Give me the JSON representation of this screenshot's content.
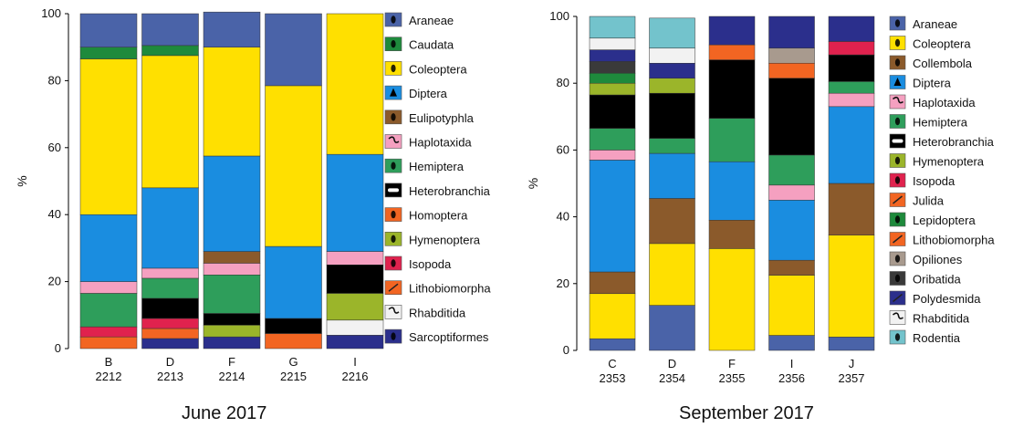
{
  "chart_data": [
    {
      "type": "bar",
      "stacked": true,
      "title": "June 2017",
      "ylabel": "%",
      "xlabel": "",
      "ylim": [
        0,
        100
      ],
      "yticks": [
        0,
        20,
        40,
        60,
        80,
        100
      ],
      "grid": false,
      "legend_position": "right",
      "categories": [
        {
          "letter": "B",
          "id": "2212"
        },
        {
          "letter": "D",
          "id": "2213"
        },
        {
          "letter": "F",
          "id": "2214"
        },
        {
          "letter": "G",
          "id": "2215"
        },
        {
          "letter": "I",
          "id": "2216"
        }
      ],
      "series": [
        {
          "name": "Sarcoptiformes",
          "color": "#2b2f8c",
          "icon": "mite-icon",
          "values": [
            0,
            3,
            3.5,
            0,
            4
          ]
        },
        {
          "name": "Rhabditida",
          "color": "#f2f2f2",
          "icon": "nematode-icon",
          "values": [
            0,
            0,
            0,
            0,
            4.5
          ]
        },
        {
          "name": "Lithobiomorpha",
          "color": "#f26522",
          "icon": "centipede-icon",
          "values": [
            3.5,
            3,
            0,
            4.5,
            0
          ]
        },
        {
          "name": "Isopoda",
          "color": "#e0224e",
          "icon": "woodlouse-icon",
          "values": [
            3,
            3,
            0,
            0,
            0
          ]
        },
        {
          "name": "Hymenoptera",
          "color": "#9bb52a",
          "icon": "ant-icon",
          "values": [
            0,
            0,
            3.5,
            0,
            8
          ]
        },
        {
          "name": "Homoptera",
          "color": "#f26522",
          "icon": "planthopper-icon",
          "values": [
            0,
            0,
            0,
            0,
            0
          ]
        },
        {
          "name": "Heterobranchia",
          "color": "#000000",
          "icon": "slug-icon",
          "values": [
            0,
            6,
            3.5,
            4.5,
            8.5
          ]
        },
        {
          "name": "Hemiptera",
          "color": "#2e9e5b",
          "icon": "bug-icon",
          "values": [
            10,
            6,
            11.5,
            0,
            0
          ]
        },
        {
          "name": "Haplotaxida",
          "color": "#f5a0c0",
          "icon": "earthworm-icon",
          "values": [
            3.5,
            3,
            3.5,
            0,
            4
          ]
        },
        {
          "name": "Eulipotyphla",
          "color": "#8b5a2b",
          "icon": "shrew-icon",
          "values": [
            0,
            0,
            3.5,
            0,
            0
          ]
        },
        {
          "name": "Diptera",
          "color": "#1a8de0",
          "icon": "fly-icon",
          "values": [
            20,
            24,
            28.5,
            21.5,
            29
          ]
        },
        {
          "name": "Coleoptera",
          "color": "#ffe000",
          "icon": "beetle-icon",
          "values": [
            46.5,
            39.5,
            32.5,
            48,
            42
          ]
        },
        {
          "name": "Caudata",
          "color": "#1e8a3c",
          "icon": "salamander-icon",
          "values": [
            3.5,
            3,
            0,
            0,
            0
          ]
        },
        {
          "name": "Araneae",
          "color": "#4a63a8",
          "icon": "spider-icon",
          "values": [
            10,
            9.5,
            10.5,
            21.5,
            0
          ]
        }
      ],
      "legend": [
        {
          "name": "Araneae",
          "color": "#4a63a8",
          "icon": "spider-icon"
        },
        {
          "name": "Caudata",
          "color": "#1e8a3c",
          "icon": "salamander-icon"
        },
        {
          "name": "Coleoptera",
          "color": "#ffe000",
          "icon": "beetle-icon"
        },
        {
          "name": "Diptera",
          "color": "#1a8de0",
          "icon": "fly-icon"
        },
        {
          "name": "Eulipotyphla",
          "color": "#8b5a2b",
          "icon": "shrew-icon"
        },
        {
          "name": "Haplotaxida",
          "color": "#f5a0c0",
          "icon": "earthworm-icon"
        },
        {
          "name": "Hemiptera",
          "color": "#2e9e5b",
          "icon": "bug-icon"
        },
        {
          "name": "Heterobranchia",
          "color": "#000000",
          "icon": "slug-icon"
        },
        {
          "name": "Homoptera",
          "color": "#f26522",
          "icon": "planthopper-icon"
        },
        {
          "name": "Hymenoptera",
          "color": "#9bb52a",
          "icon": "ant-icon"
        },
        {
          "name": "Isopoda",
          "color": "#e0224e",
          "icon": "woodlouse-icon"
        },
        {
          "name": "Lithobiomorpha",
          "color": "#f26522",
          "icon": "centipede-icon"
        },
        {
          "name": "Rhabditida",
          "color": "#f2f2f2",
          "icon": "nematode-icon"
        },
        {
          "name": "Sarcoptiformes",
          "color": "#2b2f8c",
          "icon": "mite-icon"
        }
      ]
    },
    {
      "type": "bar",
      "stacked": true,
      "title": "September 2017",
      "ylabel": "%",
      "xlabel": "",
      "ylim": [
        0,
        100
      ],
      "yticks": [
        0,
        20,
        40,
        60,
        80,
        100
      ],
      "grid": false,
      "legend_position": "right",
      "categories": [
        {
          "letter": "C",
          "id": "2353"
        },
        {
          "letter": "D",
          "id": "2354"
        },
        {
          "letter": "F",
          "id": "2355"
        },
        {
          "letter": "I",
          "id": "2356"
        },
        {
          "letter": "J",
          "id": "2357"
        }
      ],
      "series": [
        {
          "name": "Araneae",
          "color": "#4a63a8",
          "icon": "spider-icon",
          "values": [
            3.5,
            13.5,
            0,
            4.5,
            4
          ]
        },
        {
          "name": "Coleoptera",
          "color": "#ffe000",
          "icon": "beetle-icon",
          "values": [
            13.5,
            18.5,
            30.5,
            18,
            30.5
          ]
        },
        {
          "name": "Collembola",
          "color": "#8b5a2b",
          "icon": "springtail-icon",
          "values": [
            6.5,
            13.5,
            8.5,
            4.5,
            15.5
          ]
        },
        {
          "name": "Diptera",
          "color": "#1a8de0",
          "icon": "fly-icon",
          "values": [
            33.5,
            13.5,
            17.5,
            18,
            23
          ]
        },
        {
          "name": "Haplotaxida",
          "color": "#f5a0c0",
          "icon": "earthworm-icon",
          "values": [
            3,
            0,
            0,
            4.5,
            4
          ]
        },
        {
          "name": "Hemiptera",
          "color": "#2e9e5b",
          "icon": "bug-icon",
          "values": [
            6.5,
            4.5,
            13,
            9,
            3.5
          ]
        },
        {
          "name": "Heterobranchia",
          "color": "#000000",
          "icon": "slug-icon",
          "values": [
            10,
            13.5,
            17.5,
            23,
            8
          ]
        },
        {
          "name": "Hymenoptera",
          "color": "#9bb52a",
          "icon": "ant-icon",
          "values": [
            3.5,
            4.5,
            0,
            0,
            0
          ]
        },
        {
          "name": "Isopoda",
          "color": "#e0224e",
          "icon": "woodlouse-icon",
          "values": [
            0,
            0,
            0,
            0,
            4
          ]
        },
        {
          "name": "Julida",
          "color": "#f26522",
          "icon": "millipede-icon",
          "values": [
            0,
            0,
            0,
            0,
            0
          ]
        },
        {
          "name": "Lepidoptera",
          "color": "#1e8a3c",
          "icon": "caterpillar-icon",
          "values": [
            3,
            0,
            0,
            0,
            0
          ]
        },
        {
          "name": "Lithobiomorpha",
          "color": "#f26522",
          "icon": "centipede-icon",
          "values": [
            0,
            0,
            4.5,
            4.5,
            0
          ]
        },
        {
          "name": "Opiliones",
          "color": "#a89a8e",
          "icon": "harvestman-icon",
          "values": [
            0,
            0,
            0,
            4.5,
            0
          ]
        },
        {
          "name": "Oribatida",
          "color": "#3a3a3a",
          "icon": "mite-icon",
          "values": [
            3.5,
            0,
            0,
            0,
            0
          ]
        },
        {
          "name": "Polydesmida",
          "color": "#2b2f8c",
          "icon": "millipede-icon",
          "values": [
            3.5,
            4.5,
            8.5,
            9.5,
            7.5
          ]
        },
        {
          "name": "Rhabditida",
          "color": "#f2f2f2",
          "icon": "nematode-icon",
          "values": [
            3.5,
            4.5,
            0,
            0,
            0
          ]
        },
        {
          "name": "Rodentia",
          "color": "#73c3cc",
          "icon": "rodent-icon",
          "values": [
            6.5,
            9,
            0,
            0,
            0
          ]
        }
      ],
      "legend": [
        {
          "name": "Araneae",
          "color": "#4a63a8",
          "icon": "spider-icon"
        },
        {
          "name": "Coleoptera",
          "color": "#ffe000",
          "icon": "beetle-icon"
        },
        {
          "name": "Collembola",
          "color": "#8b5a2b",
          "icon": "springtail-icon"
        },
        {
          "name": "Diptera",
          "color": "#1a8de0",
          "icon": "fly-icon"
        },
        {
          "name": "Haplotaxida",
          "color": "#f5a0c0",
          "icon": "earthworm-icon"
        },
        {
          "name": "Hemiptera",
          "color": "#2e9e5b",
          "icon": "bug-icon"
        },
        {
          "name": "Heterobranchia",
          "color": "#000000",
          "icon": "slug-icon"
        },
        {
          "name": "Hymenoptera",
          "color": "#9bb52a",
          "icon": "ant-icon"
        },
        {
          "name": "Isopoda",
          "color": "#e0224e",
          "icon": "woodlouse-icon"
        },
        {
          "name": "Julida",
          "color": "#f26522",
          "icon": "millipede-icon"
        },
        {
          "name": "Lepidoptera",
          "color": "#1e8a3c",
          "icon": "caterpillar-icon"
        },
        {
          "name": "Lithobiomorpha",
          "color": "#f26522",
          "icon": "centipede-icon"
        },
        {
          "name": "Opiliones",
          "color": "#a89a8e",
          "icon": "harvestman-icon"
        },
        {
          "name": "Oribatida",
          "color": "#3a3a3a",
          "icon": "mite-icon"
        },
        {
          "name": "Polydesmida",
          "color": "#2b2f8c",
          "icon": "millipede-icon"
        },
        {
          "name": "Rhabditida",
          "color": "#f2f2f2",
          "icon": "nematode-icon"
        },
        {
          "name": "Rodentia",
          "color": "#73c3cc",
          "icon": "rodent-icon"
        }
      ]
    }
  ]
}
